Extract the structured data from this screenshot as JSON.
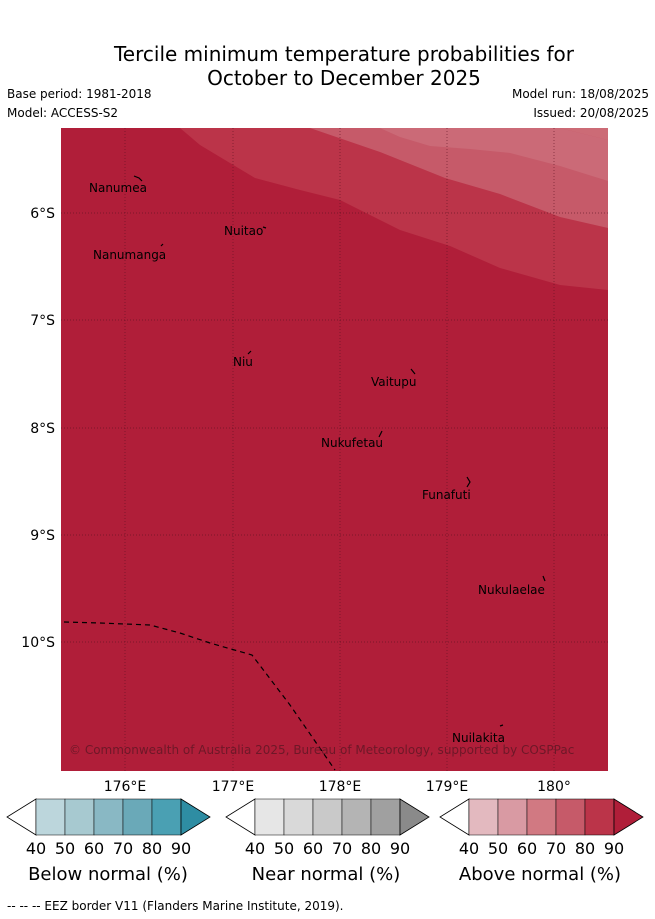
{
  "title": {
    "line1": "Tercile minimum temperature probabilities for",
    "line2": "October to December 2025"
  },
  "meta": {
    "base_period": "Base period: 1981-2018",
    "model": "Model: ACCESS-S2",
    "model_run": "Model run: 18/08/2025",
    "issued": "Issued: 20/08/2025"
  },
  "map": {
    "lat_labels": [
      "6°S",
      "7°S",
      "8°S",
      "9°S",
      "10°S"
    ],
    "lon_labels": [
      "176°E",
      "177°E",
      "178°E",
      "179°E",
      "180°"
    ],
    "places": [
      {
        "name": "Nanumea"
      },
      {
        "name": "Nuitao"
      },
      {
        "name": "Nanumanga"
      },
      {
        "name": "Niu"
      },
      {
        "name": "Vaitupu"
      },
      {
        "name": "Nukufetau"
      },
      {
        "name": "Funafuti"
      },
      {
        "name": "Nukulaelae"
      },
      {
        "name": "Nuilakita"
      }
    ],
    "copyright": "© Commonwealth of Australia 2025, Bureau of Meteorology, supported by COSPPac",
    "base_color": "#b01e39"
  },
  "colorbars": [
    {
      "title": "Below normal (%)",
      "ticks": [
        "40",
        "50",
        "60",
        "70",
        "80",
        "90"
      ],
      "colors": [
        "#ffffff",
        "#bcd6dc",
        "#a7c9d0",
        "#89b8c4",
        "#6aa9b8",
        "#4aa0b3",
        "#2e8da3"
      ]
    },
    {
      "title": "Near normal (%)",
      "ticks": [
        "40",
        "50",
        "60",
        "70",
        "80",
        "90"
      ],
      "colors": [
        "#ffffff",
        "#e6e6e6",
        "#d9d9d9",
        "#c9c9c9",
        "#b4b4b4",
        "#a0a0a0",
        "#8a8a8a"
      ]
    },
    {
      "title": "Above normal (%)",
      "ticks": [
        "40",
        "50",
        "60",
        "70",
        "80",
        "90"
      ],
      "colors": [
        "#ffffff",
        "#e3b9bf",
        "#d99aa3",
        "#d17982",
        "#c65a69",
        "#bb3449",
        "#b01e39"
      ]
    }
  ],
  "footnote": "-- -- -- EEZ border V11 (Flanders Marine Institute, 2019)."
}
